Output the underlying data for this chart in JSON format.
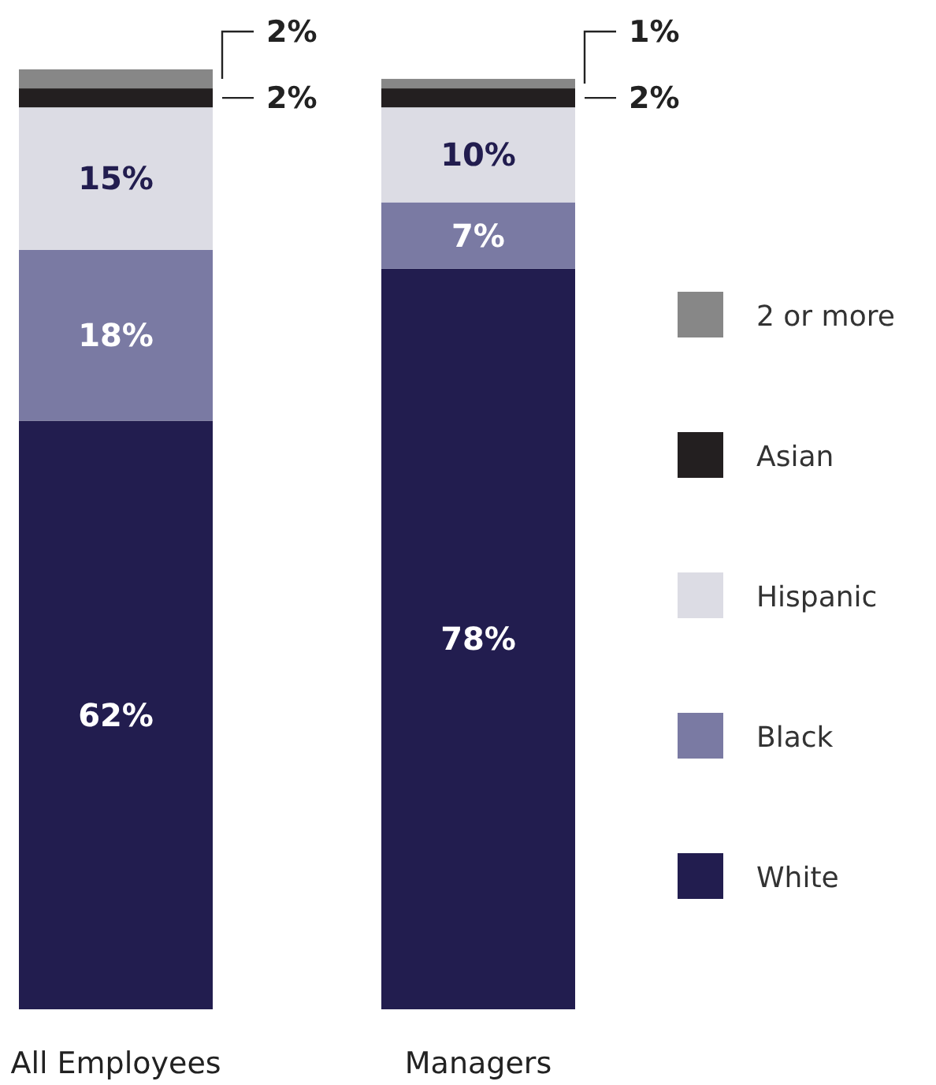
{
  "chart_data": {
    "type": "bar",
    "stacked": true,
    "categories": [
      "All Employees",
      "Managers"
    ],
    "series": [
      {
        "name": "White",
        "color": "#221d4f",
        "values": [
          62,
          78
        ],
        "value_labels": [
          "62%",
          "78%"
        ]
      },
      {
        "name": "Black",
        "color": "#7a7aa3",
        "values": [
          18,
          7
        ],
        "value_labels": [
          "18%",
          "7%"
        ]
      },
      {
        "name": "Hispanic",
        "color": "#dcdce4",
        "values": [
          15,
          10
        ],
        "value_labels": [
          "15%",
          "10%"
        ]
      },
      {
        "name": "Asian",
        "color": "#231f20",
        "values": [
          2,
          2
        ],
        "value_labels": [
          "2%",
          "2%"
        ]
      },
      {
        "name": "2 or more",
        "color": "#878787",
        "values": [
          2,
          1
        ],
        "value_labels": [
          "2%",
          "1%"
        ]
      }
    ],
    "legend": "right"
  }
}
